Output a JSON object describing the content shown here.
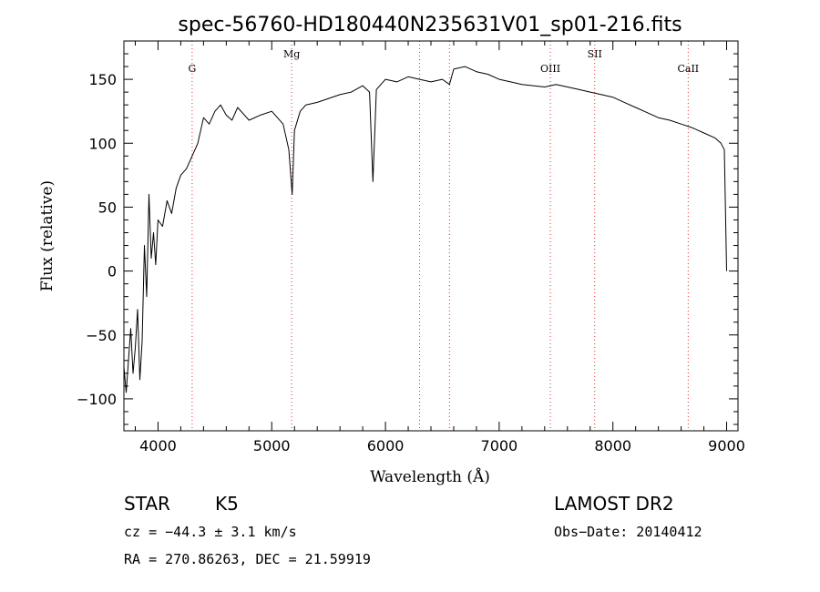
{
  "chart_data": {
    "type": "line",
    "title": "spec-56760-HD180440N235631V01_sp01-216.fits",
    "xlabel": "Wavelength (Å)",
    "ylabel": "Flux (relative)",
    "xlim": [
      3700,
      9100
    ],
    "ylim": [
      -125,
      180
    ],
    "x_ticks": [
      4000,
      5000,
      6000,
      7000,
      8000,
      9000
    ],
    "y_ticks": [
      -100,
      -50,
      0,
      50,
      100,
      150
    ],
    "x_tick_labels": [
      "4000",
      "5000",
      "6000",
      "7000",
      "8000",
      "9000"
    ],
    "y_tick_labels": [
      "-100",
      "-50",
      "0",
      "50",
      "100",
      "150"
    ],
    "grid": false,
    "series": [
      {
        "x": [
          3700,
          3720,
          3740,
          3760,
          3780,
          3800,
          3820,
          3840,
          3860,
          3880,
          3900,
          3920,
          3940,
          3960,
          3980,
          4000,
          4040,
          4080,
          4120,
          4160,
          4200,
          4250,
          4300,
          4350,
          4400,
          4450,
          4500,
          4550,
          4600,
          4650,
          4700,
          4800,
          4900,
          5000,
          5100,
          5150,
          5180,
          5200,
          5250,
          5300,
          5400,
          5500,
          5600,
          5700,
          5800,
          5860,
          5890,
          5920,
          6000,
          6100,
          6200,
          6300,
          6400,
          6500,
          6563,
          6600,
          6700,
          6800,
          6900,
          7000,
          7100,
          7200,
          7300,
          7400,
          7500,
          7600,
          7700,
          7800,
          7900,
          8000,
          8100,
          8200,
          8300,
          8400,
          8500,
          8600,
          8700,
          8800,
          8900,
          8950,
          8980,
          9000
        ],
        "y": [
          -75,
          -95,
          -70,
          -45,
          -80,
          -60,
          -30,
          -85,
          -55,
          20,
          -20,
          60,
          10,
          30,
          5,
          40,
          35,
          55,
          45,
          65,
          75,
          80,
          90,
          100,
          120,
          115,
          125,
          130,
          122,
          118,
          128,
          118,
          122,
          125,
          115,
          95,
          60,
          110,
          125,
          130,
          132,
          135,
          138,
          140,
          145,
          140,
          70,
          142,
          150,
          148,
          152,
          150,
          148,
          150,
          146,
          158,
          160,
          156,
          154,
          150,
          148,
          146,
          145,
          144,
          146,
          144,
          142,
          140,
          138,
          136,
          132,
          128,
          124,
          120,
          118,
          115,
          112,
          108,
          104,
          100,
          95,
          0
        ]
      }
    ],
    "line_markers": [
      {
        "label": "G",
        "x": 4300
      },
      {
        "label": "Mg",
        "x": 5175
      },
      {
        "label": "",
        "x": 6300
      },
      {
        "label": "",
        "x": 6563
      },
      {
        "label": "OIII",
        "x": 7450
      },
      {
        "label": "SII",
        "x": 7840
      },
      {
        "label": "CaII",
        "x": 8662
      }
    ],
    "marker_color": "#e03030"
  },
  "info": {
    "object_type": "STAR",
    "subclass": "K5",
    "survey": "LAMOST DR2",
    "cz": "cz = −44.3 ± 3.1 km/s",
    "obs_date": "Obs−Date: 20140412",
    "coords": "RA = 270.86263, DEC =  21.59919"
  }
}
